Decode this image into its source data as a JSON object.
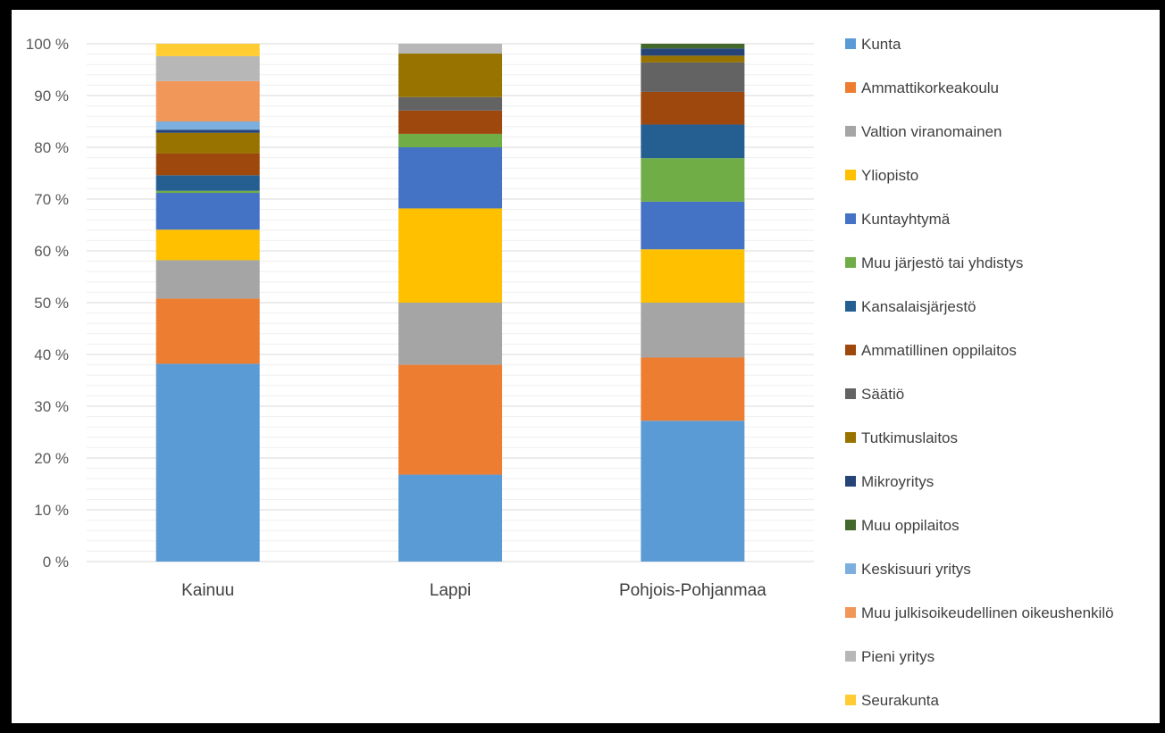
{
  "chart_data": {
    "type": "bar",
    "stacked": true,
    "normalized": true,
    "categories": [
      "Kainuu",
      "Lappi",
      "Pohjois-Pohjanmaa"
    ],
    "yticks": [
      "0 %",
      "10 %",
      "20 %",
      "30 %",
      "40 %",
      "50 %",
      "60 %",
      "70 %",
      "80 %",
      "90 %",
      "100 %"
    ],
    "ylim": [
      0,
      100
    ],
    "grid": true,
    "legend_position": "right",
    "series": [
      {
        "name": "Kunta",
        "color": "#5B9BD5",
        "values": [
          38.2,
          16.8,
          27.2
        ]
      },
      {
        "name": "Ammattikorkeakoulu",
        "color": "#ED7D31",
        "values": [
          12.6,
          21.2,
          12.2
        ]
      },
      {
        "name": "Valtion viranomainen",
        "color": "#A5A5A5",
        "values": [
          7.4,
          12.0,
          10.6
        ]
      },
      {
        "name": "Yliopisto",
        "color": "#FFC000",
        "values": [
          5.9,
          18.2,
          10.3
        ]
      },
      {
        "name": "Kuntayhtymä",
        "color": "#4472C4",
        "values": [
          7.1,
          11.8,
          9.2
        ]
      },
      {
        "name": "Muu järjestö tai yhdistys",
        "color": "#70AD47",
        "values": [
          0.4,
          2.6,
          8.4
        ]
      },
      {
        "name": "Kansalaisjärjestö",
        "color": "#255E91",
        "values": [
          3.0,
          0,
          6.5
        ]
      },
      {
        "name": "Ammatillinen oppilaitos",
        "color": "#9E480E",
        "values": [
          4.2,
          4.5,
          6.3
        ]
      },
      {
        "name": "Säätiö",
        "color": "#636363",
        "values": [
          0,
          2.6,
          5.7
        ]
      },
      {
        "name": "Tutkimuslaitos",
        "color": "#997300",
        "values": [
          4.0,
          8.4,
          1.3
        ]
      },
      {
        "name": "Mikroyritys",
        "color": "#264478",
        "values": [
          0.6,
          0,
          1.4
        ]
      },
      {
        "name": "Muu oppilaitos",
        "color": "#43682B",
        "values": [
          0,
          0,
          0.9
        ]
      },
      {
        "name": "Keskisuuri yritys",
        "color": "#7CAFDD",
        "values": [
          1.6,
          0,
          0
        ]
      },
      {
        "name": "Muu julkisoikeudellinen oikeushenkilö",
        "color": "#F1975A",
        "values": [
          7.8,
          0,
          0
        ]
      },
      {
        "name": "Pieni yritys",
        "color": "#B7B7B7",
        "values": [
          4.8,
          1.9,
          0
        ]
      },
      {
        "name": "Seurakunta",
        "color": "#FFCD33",
        "values": [
          2.4,
          0,
          0
        ]
      }
    ]
  }
}
